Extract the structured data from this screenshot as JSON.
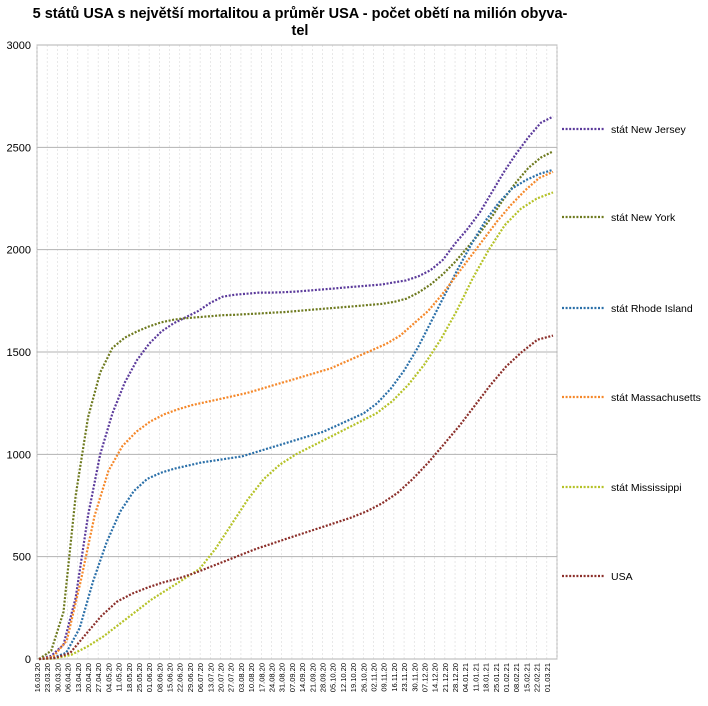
{
  "chart_data": {
    "type": "line",
    "title_lines": [
      "5 států USA s největší mortalitou a průměr USA - počet obětí na milión obyva-",
      "tel"
    ],
    "xlabel": "",
    "ylabel": "",
    "ylim": [
      0,
      3000
    ],
    "yticks": [
      0,
      500,
      1000,
      1500,
      2000,
      2500,
      3000
    ],
    "grid": true,
    "legend_position": "right",
    "x_tick_labels": [
      "16.03.20",
      "23.03.20",
      "30.03.20",
      "06.04.20",
      "13.04.20",
      "20.04.20",
      "27.04.20",
      "04.05.20",
      "11.05.20",
      "18.05.20",
      "25.05.20",
      "01.06.20",
      "08.06.20",
      "15.06.20",
      "22.06.20",
      "29.06.20",
      "06.07.20",
      "13.07.20",
      "20.07.20",
      "27.07.20",
      "03.08.20",
      "10.08.20",
      "17.08.20",
      "24.08.20",
      "31.08.20",
      "07.09.20",
      "14.09.20",
      "21.09.20",
      "28.09.20",
      "05.10.20",
      "12.10.20",
      "19.10.20",
      "26.10.20",
      "02.11.20",
      "09.11.20",
      "16.11.20",
      "23.11.20",
      "30.11.20",
      "07.12.20",
      "14.12.20",
      "21.12.20",
      "28.12.20",
      "04.01.21",
      "11.01.21",
      "18.01.21",
      "25.01.21",
      "01.02.21",
      "08.02.21",
      "15.02.21",
      "22.02.21",
      "01.03.21"
    ],
    "series": [
      {
        "name": "stát New Jersey",
        "color": "#5b3a9b",
        "values": [
          0,
          15,
          70,
          300,
          700,
          1000,
          1200,
          1350,
          1460,
          1540,
          1600,
          1640,
          1670,
          1700,
          1740,
          1770,
          1780,
          1785,
          1790,
          1790,
          1792,
          1795,
          1800,
          1805,
          1810,
          1815,
          1820,
          1825,
          1830,
          1840,
          1850,
          1870,
          1900,
          1950,
          2030,
          2100,
          2180,
          2280,
          2380,
          2470,
          2550,
          2620,
          2650
        ]
      },
      {
        "name": "stát New York",
        "color": "#6e7a1f",
        "values": [
          0,
          40,
          230,
          800,
          1180,
          1400,
          1520,
          1570,
          1600,
          1625,
          1645,
          1658,
          1665,
          1670,
          1675,
          1680,
          1682,
          1685,
          1688,
          1692,
          1695,
          1700,
          1705,
          1710,
          1715,
          1720,
          1725,
          1730,
          1735,
          1745,
          1760,
          1790,
          1830,
          1880,
          1940,
          2010,
          2080,
          2160,
          2250,
          2330,
          2400,
          2450,
          2480
        ]
      },
      {
        "name": "stát Rhode Island",
        "color": "#2a6fa8",
        "values": [
          0,
          5,
          30,
          150,
          380,
          570,
          720,
          820,
          880,
          910,
          930,
          945,
          960,
          970,
          980,
          990,
          1010,
          1030,
          1050,
          1070,
          1090,
          1110,
          1140,
          1170,
          1200,
          1250,
          1320,
          1410,
          1520,
          1650,
          1780,
          1910,
          2030,
          2140,
          2230,
          2300,
          2340,
          2370,
          2390
        ]
      },
      {
        "name": "stát Massachusetts",
        "color": "#f5882a",
        "values": [
          0,
          10,
          90,
          380,
          700,
          920,
          1040,
          1110,
          1160,
          1195,
          1220,
          1240,
          1255,
          1270,
          1285,
          1300,
          1320,
          1340,
          1360,
          1380,
          1400,
          1420,
          1450,
          1480,
          1510,
          1540,
          1580,
          1640,
          1700,
          1780,
          1870,
          1960,
          2050,
          2140,
          2220,
          2290,
          2350,
          2380
        ]
      },
      {
        "name": "stát Mississippi",
        "color": "#b5c227",
        "values": [
          0,
          3,
          20,
          60,
          110,
          170,
          230,
          290,
          340,
          390,
          440,
          540,
          660,
          780,
          880,
          950,
          1000,
          1040,
          1080,
          1120,
          1160,
          1200,
          1260,
          1340,
          1440,
          1560,
          1700,
          1860,
          2000,
          2120,
          2200,
          2250,
          2280
        ]
      },
      {
        "name": "USA",
        "color": "#8b2f2a",
        "values": [
          0,
          5,
          30,
          120,
          210,
          280,
          320,
          350,
          375,
          395,
          420,
          450,
          480,
          510,
          540,
          565,
          590,
          615,
          640,
          665,
          690,
          720,
          760,
          810,
          880,
          960,
          1050,
          1140,
          1240,
          1340,
          1430,
          1500,
          1560,
          1580
        ]
      }
    ]
  }
}
